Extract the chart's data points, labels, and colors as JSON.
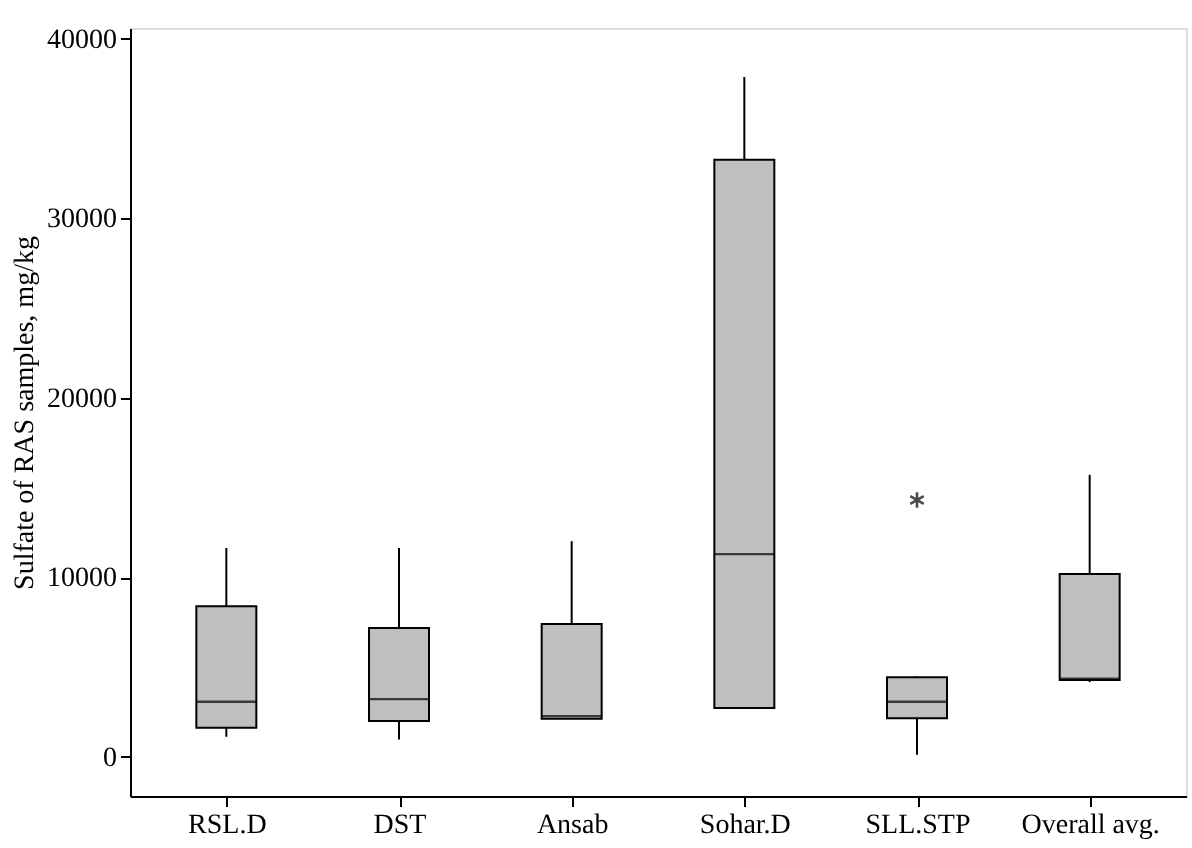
{
  "chart_data": {
    "type": "box",
    "ylabel": "Sulfate of RAS samples, mg/kg",
    "categories": [
      "RSL.D",
      "DST",
      "Ansab",
      "Sohar.D",
      "SLL.STP",
      "Overall avg."
    ],
    "boxes": [
      {
        "low": 1100,
        "q1": 1600,
        "median": 3050,
        "q3": 8380,
        "high": 11620
      },
      {
        "low": 950,
        "q1": 1980,
        "median": 3200,
        "q3": 7160,
        "high": 11620
      },
      {
        "low": 2100,
        "q1": 2100,
        "median": 2250,
        "q3": 7390,
        "high": 12000
      },
      {
        "low": 2700,
        "q1": 2700,
        "median": 11280,
        "q3": 33260,
        "high": 37870
      },
      {
        "low": 100,
        "q1": 2130,
        "median": 3050,
        "q3": 4420,
        "high": 4460,
        "outliers": [
          14290
        ]
      },
      {
        "low": 4150,
        "q1": 4270,
        "median": 4340,
        "q3": 10170,
        "high": 15700
      }
    ],
    "color": "#bfbfbf",
    "ylim": [
      -2200,
      40600
    ],
    "yticks": [
      0,
      10000,
      20000,
      30000,
      40000
    ],
    "grid": false
  }
}
